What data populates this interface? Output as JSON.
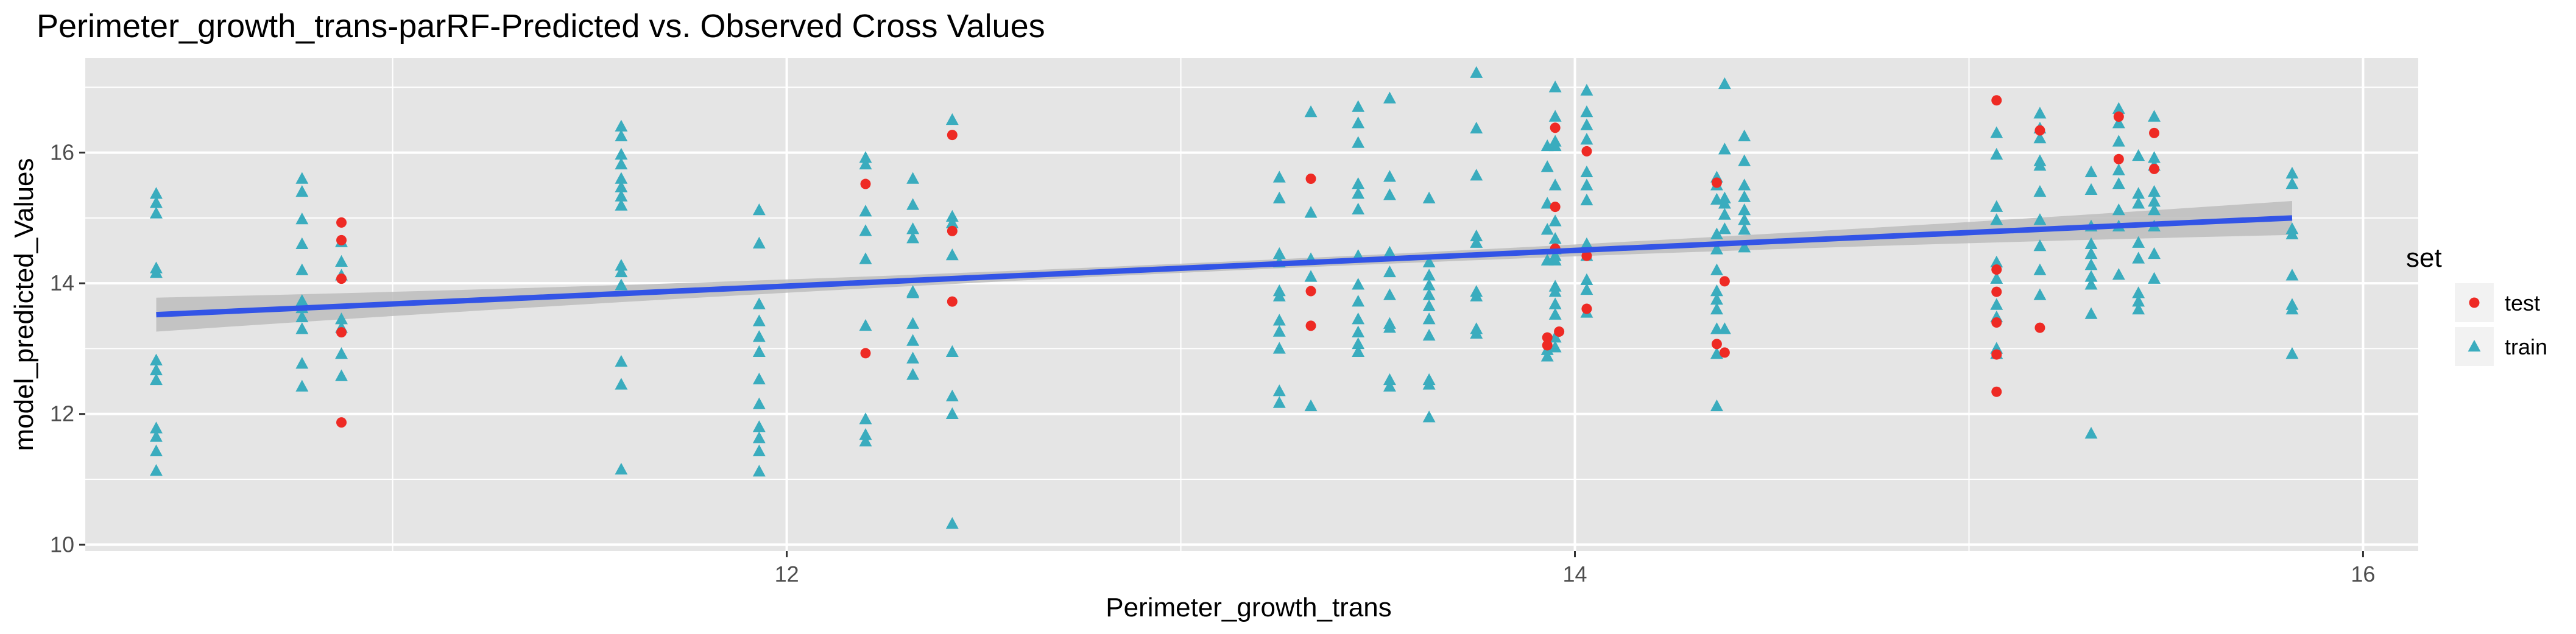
{
  "chart_data": {
    "type": "scatter",
    "title": "Perimeter_growth_trans-parRF-Predicted vs. Observed Cross Values",
    "xlabel": "Perimeter_growth_trans",
    "ylabel": "model_predicted_Values",
    "xlim": [
      10.22,
      16.14
    ],
    "ylim": [
      9.9,
      17.45
    ],
    "x_ticks": [
      12,
      14,
      16
    ],
    "y_ticks": [
      10,
      12,
      14,
      16
    ],
    "grid": true,
    "legend": {
      "title": "set",
      "position": "right",
      "entries": [
        "test",
        "train"
      ]
    },
    "colors": {
      "test": "#ee2a24",
      "train": "#3aacbe",
      "fit_line": "#3254e6",
      "confidence_band": "#bdbdbd",
      "panel": "#e5e5e5",
      "grid": "#ffffff"
    },
    "trend_line": {
      "x": [
        10.4,
        15.82
      ],
      "y": [
        13.52,
        15.0
      ],
      "band_half_width_ends": 0.26,
      "band_half_width_mid": 0.07
    },
    "series": [
      {
        "name": "test",
        "marker": "circle",
        "points": [
          [
            10.87,
            14.93
          ],
          [
            10.87,
            14.66
          ],
          [
            10.87,
            14.07
          ],
          [
            10.87,
            13.25
          ],
          [
            10.87,
            11.87
          ],
          [
            12.2,
            15.52
          ],
          [
            12.2,
            12.93
          ],
          [
            12.42,
            16.27
          ],
          [
            12.42,
            14.8
          ],
          [
            12.42,
            13.72
          ],
          [
            13.33,
            15.6
          ],
          [
            13.33,
            13.88
          ],
          [
            13.33,
            13.35
          ],
          [
            13.93,
            13.17
          ],
          [
            13.93,
            13.05
          ],
          [
            13.95,
            16.38
          ],
          [
            13.95,
            15.17
          ],
          [
            13.95,
            14.53
          ],
          [
            13.96,
            13.26
          ],
          [
            14.03,
            16.02
          ],
          [
            14.03,
            14.42
          ],
          [
            14.03,
            13.61
          ],
          [
            14.36,
            15.54
          ],
          [
            14.36,
            13.07
          ],
          [
            14.38,
            14.03
          ],
          [
            14.38,
            12.94
          ],
          [
            15.07,
            16.8
          ],
          [
            15.07,
            14.21
          ],
          [
            15.07,
            13.87
          ],
          [
            15.07,
            12.34
          ],
          [
            15.07,
            12.91
          ],
          [
            15.07,
            13.4
          ],
          [
            15.18,
            16.34
          ],
          [
            15.18,
            13.32
          ],
          [
            15.38,
            16.55
          ],
          [
            15.38,
            15.9
          ],
          [
            15.47,
            16.3
          ],
          [
            15.47,
            15.75
          ]
        ]
      },
      {
        "name": "train",
        "marker": "triangle",
        "points": [
          [
            10.4,
            15.37
          ],
          [
            10.4,
            15.23
          ],
          [
            10.4,
            15.07
          ],
          [
            10.4,
            14.23
          ],
          [
            10.4,
            14.16
          ],
          [
            10.4,
            12.82
          ],
          [
            10.4,
            12.67
          ],
          [
            10.4,
            12.52
          ],
          [
            10.4,
            11.78
          ],
          [
            10.4,
            11.65
          ],
          [
            10.4,
            11.43
          ],
          [
            10.4,
            11.13
          ],
          [
            10.77,
            15.6
          ],
          [
            10.77,
            15.4
          ],
          [
            10.77,
            14.98
          ],
          [
            10.77,
            14.6
          ],
          [
            10.77,
            14.2
          ],
          [
            10.77,
            13.73
          ],
          [
            10.77,
            13.62
          ],
          [
            10.77,
            13.48
          ],
          [
            10.77,
            13.3
          ],
          [
            10.77,
            12.77
          ],
          [
            10.77,
            12.42
          ],
          [
            10.87,
            14.63
          ],
          [
            10.87,
            14.33
          ],
          [
            10.87,
            14.12
          ],
          [
            10.87,
            13.45
          ],
          [
            10.87,
            13.32
          ],
          [
            10.87,
            12.92
          ],
          [
            10.87,
            12.58
          ],
          [
            11.58,
            16.4
          ],
          [
            11.58,
            16.25
          ],
          [
            11.58,
            15.97
          ],
          [
            11.58,
            15.82
          ],
          [
            11.58,
            15.6
          ],
          [
            11.58,
            15.47
          ],
          [
            11.58,
            15.33
          ],
          [
            11.58,
            15.19
          ],
          [
            11.58,
            14.27
          ],
          [
            11.58,
            14.17
          ],
          [
            11.58,
            13.97
          ],
          [
            11.58,
            12.8
          ],
          [
            11.58,
            12.45
          ],
          [
            11.58,
            11.15
          ],
          [
            11.93,
            15.12
          ],
          [
            11.93,
            14.61
          ],
          [
            11.93,
            13.68
          ],
          [
            11.93,
            13.42
          ],
          [
            11.93,
            13.18
          ],
          [
            11.93,
            12.95
          ],
          [
            11.93,
            12.53
          ],
          [
            11.93,
            12.15
          ],
          [
            11.93,
            11.8
          ],
          [
            11.93,
            11.63
          ],
          [
            11.93,
            11.43
          ],
          [
            11.93,
            11.12
          ],
          [
            12.2,
            15.92
          ],
          [
            12.2,
            15.82
          ],
          [
            12.2,
            15.1
          ],
          [
            12.2,
            14.8
          ],
          [
            12.2,
            14.37
          ],
          [
            12.2,
            13.35
          ],
          [
            12.2,
            11.92
          ],
          [
            12.2,
            11.68
          ],
          [
            12.2,
            11.58
          ],
          [
            12.32,
            15.6
          ],
          [
            12.32,
            15.2
          ],
          [
            12.32,
            14.83
          ],
          [
            12.32,
            14.69
          ],
          [
            12.32,
            13.87
          ],
          [
            12.32,
            13.85
          ],
          [
            12.32,
            13.38
          ],
          [
            12.32,
            13.12
          ],
          [
            12.32,
            12.85
          ],
          [
            12.32,
            12.6
          ],
          [
            12.42,
            16.5
          ],
          [
            12.42,
            15.02
          ],
          [
            12.42,
            14.92
          ],
          [
            12.42,
            14.43
          ],
          [
            12.42,
            12.95
          ],
          [
            12.42,
            12.27
          ],
          [
            12.42,
            12.0
          ],
          [
            12.42,
            10.32
          ],
          [
            13.25,
            15.62
          ],
          [
            13.25,
            15.3
          ],
          [
            13.25,
            14.45
          ],
          [
            13.25,
            14.32
          ],
          [
            13.25,
            13.88
          ],
          [
            13.25,
            13.8
          ],
          [
            13.25,
            13.43
          ],
          [
            13.25,
            13.26
          ],
          [
            13.25,
            13.0
          ],
          [
            13.25,
            12.35
          ],
          [
            13.25,
            12.17
          ],
          [
            13.33,
            16.62
          ],
          [
            13.33,
            15.08
          ],
          [
            13.33,
            14.37
          ],
          [
            13.33,
            14.1
          ],
          [
            13.33,
            12.12
          ],
          [
            13.45,
            16.7
          ],
          [
            13.45,
            16.45
          ],
          [
            13.45,
            16.15
          ],
          [
            13.45,
            15.52
          ],
          [
            13.45,
            15.37
          ],
          [
            13.45,
            15.13
          ],
          [
            13.45,
            14.42
          ],
          [
            13.45,
            13.98
          ],
          [
            13.45,
            13.72
          ],
          [
            13.45,
            13.45
          ],
          [
            13.45,
            13.25
          ],
          [
            13.45,
            13.07
          ],
          [
            13.45,
            12.95
          ],
          [
            13.53,
            16.83
          ],
          [
            13.53,
            15.63
          ],
          [
            13.53,
            15.35
          ],
          [
            13.53,
            14.47
          ],
          [
            13.53,
            14.17
          ],
          [
            13.53,
            13.82
          ],
          [
            13.53,
            13.38
          ],
          [
            13.53,
            13.32
          ],
          [
            13.53,
            12.52
          ],
          [
            13.53,
            12.42
          ],
          [
            13.63,
            15.3
          ],
          [
            13.63,
            14.32
          ],
          [
            13.63,
            14.12
          ],
          [
            13.63,
            13.97
          ],
          [
            13.63,
            13.82
          ],
          [
            13.63,
            13.65
          ],
          [
            13.63,
            13.45
          ],
          [
            13.63,
            13.2
          ],
          [
            13.63,
            12.52
          ],
          [
            13.63,
            12.45
          ],
          [
            13.63,
            11.95
          ],
          [
            13.75,
            17.22
          ],
          [
            13.75,
            16.37
          ],
          [
            13.75,
            15.65
          ],
          [
            13.75,
            14.72
          ],
          [
            13.75,
            14.62
          ],
          [
            13.75,
            13.87
          ],
          [
            13.75,
            13.8
          ],
          [
            13.75,
            13.3
          ],
          [
            13.75,
            13.23
          ],
          [
            13.93,
            16.1
          ],
          [
            13.93,
            15.78
          ],
          [
            13.93,
            15.22
          ],
          [
            13.93,
            14.82
          ],
          [
            13.93,
            14.35
          ],
          [
            13.93,
            12.98
          ],
          [
            13.93,
            12.88
          ],
          [
            13.95,
            17.0
          ],
          [
            13.95,
            16.55
          ],
          [
            13.95,
            16.17
          ],
          [
            13.95,
            16.1
          ],
          [
            13.95,
            15.5
          ],
          [
            13.95,
            14.95
          ],
          [
            13.95,
            14.68
          ],
          [
            13.95,
            14.52
          ],
          [
            13.95,
            14.42
          ],
          [
            13.95,
            14.35
          ],
          [
            13.95,
            13.95
          ],
          [
            13.95,
            13.87
          ],
          [
            13.95,
            13.68
          ],
          [
            13.95,
            13.52
          ],
          [
            13.95,
            13.17
          ],
          [
            13.95,
            13.02
          ],
          [
            14.03,
            16.95
          ],
          [
            14.03,
            16.62
          ],
          [
            14.03,
            16.42
          ],
          [
            14.03,
            16.2
          ],
          [
            14.03,
            15.7
          ],
          [
            14.03,
            15.5
          ],
          [
            14.03,
            15.27
          ],
          [
            14.03,
            14.6
          ],
          [
            14.03,
            14.42
          ],
          [
            14.03,
            14.05
          ],
          [
            14.03,
            13.9
          ],
          [
            14.03,
            13.55
          ],
          [
            14.36,
            15.62
          ],
          [
            14.36,
            15.5
          ],
          [
            14.36,
            15.28
          ],
          [
            14.36,
            14.75
          ],
          [
            14.36,
            14.52
          ],
          [
            14.36,
            14.2
          ],
          [
            14.36,
            13.88
          ],
          [
            14.36,
            13.75
          ],
          [
            14.36,
            13.6
          ],
          [
            14.36,
            13.3
          ],
          [
            14.36,
            12.92
          ],
          [
            14.36,
            12.12
          ],
          [
            14.38,
            17.05
          ],
          [
            14.38,
            16.05
          ],
          [
            14.38,
            15.3
          ],
          [
            14.38,
            15.22
          ],
          [
            14.38,
            15.05
          ],
          [
            14.38,
            14.83
          ],
          [
            14.38,
            13.3
          ],
          [
            14.43,
            16.25
          ],
          [
            14.43,
            15.87
          ],
          [
            14.43,
            15.5
          ],
          [
            14.43,
            15.32
          ],
          [
            14.43,
            15.12
          ],
          [
            14.43,
            14.97
          ],
          [
            14.43,
            14.82
          ],
          [
            14.43,
            14.55
          ],
          [
            15.07,
            16.3
          ],
          [
            15.07,
            15.97
          ],
          [
            15.07,
            15.17
          ],
          [
            15.07,
            14.97
          ],
          [
            15.07,
            14.32
          ],
          [
            15.07,
            14.07
          ],
          [
            15.07,
            13.67
          ],
          [
            15.07,
            13.48
          ],
          [
            15.07,
            13.0
          ],
          [
            15.07,
            12.92
          ],
          [
            15.18,
            16.6
          ],
          [
            15.18,
            16.37
          ],
          [
            15.18,
            16.22
          ],
          [
            15.18,
            15.87
          ],
          [
            15.18,
            15.8
          ],
          [
            15.18,
            15.4
          ],
          [
            15.18,
            14.97
          ],
          [
            15.18,
            14.57
          ],
          [
            15.18,
            14.2
          ],
          [
            15.18,
            13.82
          ],
          [
            15.31,
            15.7
          ],
          [
            15.31,
            15.43
          ],
          [
            15.31,
            14.87
          ],
          [
            15.31,
            14.6
          ],
          [
            15.31,
            14.45
          ],
          [
            15.31,
            14.28
          ],
          [
            15.31,
            14.1
          ],
          [
            15.31,
            13.98
          ],
          [
            15.31,
            13.53
          ],
          [
            15.31,
            11.7
          ],
          [
            15.38,
            16.67
          ],
          [
            15.38,
            16.45
          ],
          [
            15.38,
            16.17
          ],
          [
            15.38,
            15.73
          ],
          [
            15.38,
            15.52
          ],
          [
            15.38,
            15.12
          ],
          [
            15.38,
            14.87
          ],
          [
            15.38,
            14.13
          ],
          [
            15.43,
            15.95
          ],
          [
            15.43,
            15.37
          ],
          [
            15.43,
            15.22
          ],
          [
            15.43,
            14.62
          ],
          [
            15.43,
            14.38
          ],
          [
            15.43,
            13.85
          ],
          [
            15.43,
            13.72
          ],
          [
            15.43,
            13.6
          ],
          [
            15.47,
            16.55
          ],
          [
            15.47,
            15.92
          ],
          [
            15.47,
            15.8
          ],
          [
            15.47,
            15.4
          ],
          [
            15.47,
            15.25
          ],
          [
            15.47,
            15.12
          ],
          [
            15.47,
            14.87
          ],
          [
            15.47,
            14.45
          ],
          [
            15.47,
            14.07
          ],
          [
            15.82,
            15.68
          ],
          [
            15.82,
            15.52
          ],
          [
            15.82,
            14.83
          ],
          [
            15.82,
            14.75
          ],
          [
            15.82,
            14.12
          ],
          [
            15.82,
            13.67
          ],
          [
            15.82,
            13.6
          ],
          [
            15.82,
            12.92
          ]
        ]
      }
    ]
  }
}
